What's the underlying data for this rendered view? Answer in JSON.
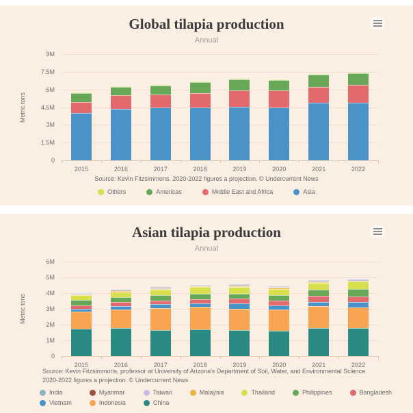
{
  "page": {
    "background": "#ffffff",
    "panel_background": "#fbeee2",
    "gridline_color": "#f1ddca",
    "text_color": "#6b6b6b"
  },
  "chart_data": [
    {
      "type": "bar",
      "stacked": true,
      "title": "Global tilapia production",
      "subtitle": "Annual",
      "ylabel": "Metric tons",
      "xlabel": "",
      "context_menu_icon": "hamburger-menu-icon",
      "grid": true,
      "legend_position": "bottom",
      "categories": [
        "2015",
        "2016",
        "2017",
        "2018",
        "2019",
        "2020",
        "2021",
        "2022"
      ],
      "values_unit": "millions of metric tons",
      "ylim": [
        0,
        9
      ],
      "ytick_labels": [
        "9M",
        "7.5M",
        "6M",
        "4.5M",
        "3M",
        "1.5M",
        "0"
      ],
      "series": [
        {
          "name": "Asia",
          "color": "#4a93c9",
          "values": [
            4.0,
            4.35,
            4.45,
            4.5,
            4.55,
            4.5,
            4.85,
            4.9
          ]
        },
        {
          "name": "Middle East and Africa",
          "color": "#e26a6d",
          "values": [
            0.95,
            1.15,
            1.1,
            1.2,
            1.4,
            1.4,
            1.38,
            1.5
          ]
        },
        {
          "name": "Americas",
          "color": "#67a758",
          "values": [
            0.75,
            0.72,
            0.8,
            0.9,
            0.9,
            0.9,
            1.05,
            1.0
          ]
        },
        {
          "name": "Others",
          "color": "#d9e04e",
          "values": [
            0.02,
            0.02,
            0.02,
            0.02,
            0.02,
            0.02,
            0.03,
            0.03
          ]
        }
      ],
      "legend": [
        "Others",
        "Americas",
        "Middle East and Africa",
        "Asia"
      ],
      "source": "Source: Kevin Fitzsimmons. 2020-2022 figures a projection. © Undercurrent News"
    },
    {
      "type": "bar",
      "stacked": true,
      "title": "Asian tilapia production",
      "subtitle": "Annual",
      "ylabel": "Metric tons",
      "xlabel": "",
      "context_menu_icon": "hamburger-menu-icon",
      "grid": true,
      "legend_position": "bottom",
      "categories": [
        "2015",
        "2016",
        "2017",
        "2018",
        "2019",
        "2020",
        "2021",
        "2022"
      ],
      "values_unit": "millions of metric tons",
      "ylim": [
        0,
        6
      ],
      "ytick_labels": [
        "6M",
        "5M",
        "4M",
        "3M",
        "2M",
        "1M",
        "0"
      ],
      "series": [
        {
          "name": "China",
          "color": "#2a8a81",
          "values": [
            1.74,
            1.77,
            1.66,
            1.69,
            1.65,
            1.62,
            1.79,
            1.77
          ]
        },
        {
          "name": "Indonesia",
          "color": "#f9a450",
          "values": [
            1.07,
            1.17,
            1.4,
            1.44,
            1.37,
            1.32,
            1.37,
            1.32
          ]
        },
        {
          "name": "Vietnam",
          "color": "#4a93c9",
          "values": [
            0.2,
            0.25,
            0.24,
            0.22,
            0.33,
            0.29,
            0.29,
            0.33
          ]
        },
        {
          "name": "Bangladesh",
          "color": "#e26a6d",
          "values": [
            0.2,
            0.23,
            0.23,
            0.28,
            0.31,
            0.3,
            0.36,
            0.36
          ]
        },
        {
          "name": "Philippines",
          "color": "#67a758",
          "values": [
            0.35,
            0.31,
            0.35,
            0.32,
            0.29,
            0.32,
            0.4,
            0.47
          ]
        },
        {
          "name": "Thailand",
          "color": "#d9e04e",
          "values": [
            0.3,
            0.33,
            0.34,
            0.43,
            0.43,
            0.43,
            0.43,
            0.49
          ]
        },
        {
          "name": "Malaysia",
          "color": "#ecb440",
          "values": [
            0.05,
            0.05,
            0.05,
            0.05,
            0.06,
            0.06,
            0.06,
            0.06
          ]
        },
        {
          "name": "Taiwan",
          "color": "#c7bce4",
          "values": [
            0.04,
            0.04,
            0.04,
            0.04,
            0.05,
            0.05,
            0.05,
            0.05
          ]
        },
        {
          "name": "Myanmar",
          "color": "#a04e3c",
          "values": [
            0.02,
            0.02,
            0.02,
            0.02,
            0.02,
            0.02,
            0.02,
            0.02
          ]
        },
        {
          "name": "India",
          "color": "#8fb0c0",
          "values": [
            0.03,
            0.03,
            0.03,
            0.03,
            0.03,
            0.03,
            0.03,
            0.03
          ]
        }
      ],
      "legend": [
        "India",
        "Myanmar",
        "Taiwan",
        "Malaysia",
        "Thailand",
        "Philippines",
        "Bangladesh",
        "Vietnam",
        "Indonesia",
        "China"
      ],
      "source": "Source: Kevin Fitzsimmons, professor at University of Arizona's Department of Soil, Water, and Environmental Science. 2020-2022 figures a projection. © Undercurrent News"
    }
  ]
}
